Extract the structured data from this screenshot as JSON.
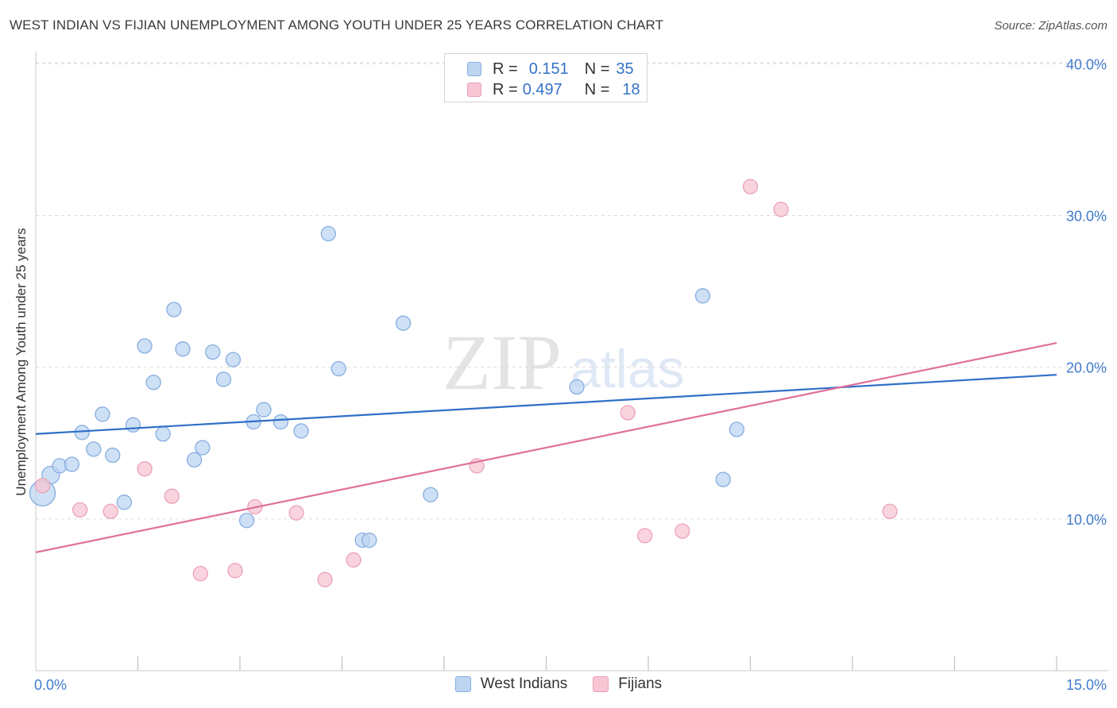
{
  "header": {
    "title": "WEST INDIAN VS FIJIAN UNEMPLOYMENT AMONG YOUTH UNDER 25 YEARS CORRELATION CHART",
    "source": "Source: ZipAtlas.com"
  },
  "watermark": {
    "zip": "ZIP",
    "atlas": "atlas"
  },
  "legend_top": {
    "rows": [
      {
        "r_label": "R =",
        "r_value": "0.151",
        "n_label": "N =",
        "n_value": "35"
      },
      {
        "r_label": "R =",
        "r_value": "0.497",
        "n_label": "N =",
        "n_value": "18"
      }
    ]
  },
  "colors": {
    "blue_fill": "#bed5f2",
    "blue_stroke": "#86addf",
    "blue_line": "#2f6fc8",
    "pink_fill": "#f7c5d3",
    "pink_stroke": "#eba1b8",
    "pink_line": "#e0709a",
    "tick_label": "#3f7bcd",
    "grid": "#dcdcdc"
  },
  "chart_data": {
    "type": "scatter",
    "title": "WEST INDIAN VS FIJIAN UNEMPLOYMENT AMONG YOUTH UNDER 25 YEARS CORRELATION CHART",
    "xlabel": "",
    "ylabel": "Unemployment Among Youth under 25 years",
    "xlim": [
      0,
      15
    ],
    "ylim": [
      0,
      40.8
    ],
    "x_tick_labels": [
      "0.0%",
      "15.0%"
    ],
    "y_ticks": [
      10,
      20,
      30,
      40
    ],
    "y_tick_labels": [
      "10.0%",
      "20.0%",
      "30.0%",
      "40.0%"
    ],
    "grid": true,
    "legend_position": "top-center",
    "series": [
      {
        "name": "West Indians",
        "r": 0.151,
        "n": 35,
        "trend": [
          [
            0,
            15.6
          ],
          [
            15,
            19.5
          ]
        ],
        "points": [
          {
            "x": 0.1,
            "y": 11.7,
            "size": 3
          },
          {
            "x": 0.22,
            "y": 12.9,
            "size": 2
          },
          {
            "x": 0.35,
            "y": 13.5,
            "size": 1
          },
          {
            "x": 0.53,
            "y": 13.6,
            "size": 1
          },
          {
            "x": 0.68,
            "y": 15.7,
            "size": 1
          },
          {
            "x": 0.85,
            "y": 14.6,
            "size": 1
          },
          {
            "x": 0.98,
            "y": 16.9,
            "size": 1
          },
          {
            "x": 1.13,
            "y": 14.2,
            "size": 1
          },
          {
            "x": 1.3,
            "y": 11.1,
            "size": 1
          },
          {
            "x": 1.43,
            "y": 16.2,
            "size": 1
          },
          {
            "x": 1.6,
            "y": 21.4,
            "size": 1
          },
          {
            "x": 1.73,
            "y": 19.0,
            "size": 1
          },
          {
            "x": 1.87,
            "y": 15.6,
            "size": 1
          },
          {
            "x": 2.03,
            "y": 23.8,
            "size": 1
          },
          {
            "x": 2.16,
            "y": 21.2,
            "size": 1
          },
          {
            "x": 2.33,
            "y": 13.9,
            "size": 1
          },
          {
            "x": 2.45,
            "y": 14.7,
            "size": 1
          },
          {
            "x": 2.6,
            "y": 21.0,
            "size": 1
          },
          {
            "x": 2.76,
            "y": 19.2,
            "size": 1
          },
          {
            "x": 2.9,
            "y": 20.5,
            "size": 1
          },
          {
            "x": 3.1,
            "y": 9.9,
            "size": 1
          },
          {
            "x": 3.2,
            "y": 16.4,
            "size": 1
          },
          {
            "x": 3.35,
            "y": 17.2,
            "size": 1
          },
          {
            "x": 3.6,
            "y": 16.4,
            "size": 1
          },
          {
            "x": 3.9,
            "y": 15.8,
            "size": 1
          },
          {
            "x": 4.3,
            "y": 28.8,
            "size": 1
          },
          {
            "x": 4.45,
            "y": 19.9,
            "size": 1
          },
          {
            "x": 4.8,
            "y": 8.6,
            "size": 1
          },
          {
            "x": 4.9,
            "y": 8.6,
            "size": 1
          },
          {
            "x": 5.4,
            "y": 22.9,
            "size": 1
          },
          {
            "x": 5.8,
            "y": 11.6,
            "size": 1
          },
          {
            "x": 7.95,
            "y": 18.7,
            "size": 1
          },
          {
            "x": 9.8,
            "y": 24.7,
            "size": 1
          },
          {
            "x": 10.1,
            "y": 12.6,
            "size": 1
          },
          {
            "x": 10.3,
            "y": 15.9,
            "size": 1
          }
        ]
      },
      {
        "name": "Fijians",
        "r": 0.497,
        "n": 18,
        "trend": [
          [
            0,
            7.8
          ],
          [
            15,
            21.6
          ]
        ],
        "points": [
          {
            "x": 0.1,
            "y": 12.2,
            "size": 1
          },
          {
            "x": 0.65,
            "y": 10.6,
            "size": 1
          },
          {
            "x": 1.1,
            "y": 10.5,
            "size": 1
          },
          {
            "x": 1.6,
            "y": 13.3,
            "size": 1
          },
          {
            "x": 2.0,
            "y": 11.5,
            "size": 1
          },
          {
            "x": 2.42,
            "y": 6.4,
            "size": 1
          },
          {
            "x": 2.93,
            "y": 6.6,
            "size": 1
          },
          {
            "x": 3.22,
            "y": 10.8,
            "size": 1
          },
          {
            "x": 3.83,
            "y": 10.4,
            "size": 1
          },
          {
            "x": 4.25,
            "y": 6.0,
            "size": 1
          },
          {
            "x": 4.67,
            "y": 7.3,
            "size": 1
          },
          {
            "x": 6.48,
            "y": 13.5,
            "size": 1
          },
          {
            "x": 8.7,
            "y": 17.0,
            "size": 1
          },
          {
            "x": 8.95,
            "y": 8.9,
            "size": 1
          },
          {
            "x": 9.5,
            "y": 9.2,
            "size": 1
          },
          {
            "x": 10.5,
            "y": 31.9,
            "size": 1
          },
          {
            "x": 10.95,
            "y": 30.4,
            "size": 1
          },
          {
            "x": 12.55,
            "y": 10.5,
            "size": 1
          }
        ]
      }
    ]
  },
  "legend_bottom": {
    "items": [
      {
        "label": "West Indians"
      },
      {
        "label": "Fijians"
      }
    ]
  }
}
